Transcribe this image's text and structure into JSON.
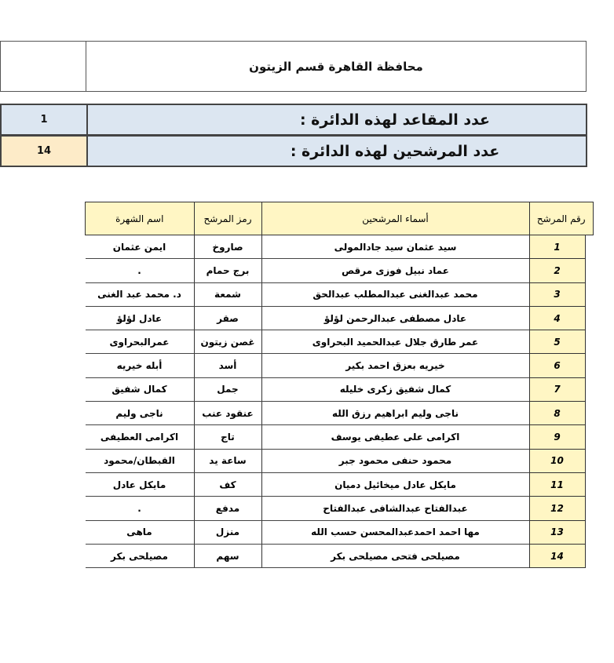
{
  "title": "محافظة القاهرة قسم الزيتون",
  "seats": {
    "label": "عدد المقاعد لهذه الدائرة :",
    "value": "1"
  },
  "candidates_count": {
    "label": "عدد المرشحين لهذه الدائرة :",
    "value": "14"
  },
  "table": {
    "headers": {
      "number": "رقم المرشح",
      "name": "أسماء المرشحين",
      "symbol": "رمز المرشح",
      "fame": "اسم الشهرة"
    },
    "rows": [
      {
        "number": "1",
        "name": "سيد عثمان سيد جادالمولى",
        "symbol": "صاروخ",
        "fame": "ايمن عثمان"
      },
      {
        "number": "2",
        "name": "عماد نبيل فوزى مرقص",
        "symbol": "برج حمام",
        "fame": "."
      },
      {
        "number": "3",
        "name": "محمد عبدالغنى عبدالمطلب عبدالحق",
        "symbol": "شمعة",
        "fame": "د. محمد عبد الغنى"
      },
      {
        "number": "4",
        "name": "عادل مصطفى عبدالرحمن لؤلؤ",
        "symbol": "صقر",
        "fame": "عادل لؤلؤ"
      },
      {
        "number": "5",
        "name": "عمر طارق جلال عبدالحميد البحراوى",
        "symbol": "غصن زيتون",
        "fame": "عمرالبحراوى"
      },
      {
        "number": "6",
        "name": "خيريه بعزق احمد بكير",
        "symbol": "أسد",
        "fame": "أبله خيريه"
      },
      {
        "number": "7",
        "name": "كمال شفيق زكرى خليله",
        "symbol": "جمل",
        "fame": "كمال شفيق"
      },
      {
        "number": "8",
        "name": "ناجى وليم ابراهيم رزق الله",
        "symbol": "عنقود عنب",
        "fame": "ناجى وليم"
      },
      {
        "number": "9",
        "name": "اكرامى على عطيفى يوسف",
        "symbol": "تاج",
        "fame": "اكرامى العطيفى"
      },
      {
        "number": "10",
        "name": "محمود حنفى محمود جبر",
        "symbol": "ساعة يد",
        "fame": "القبطان/محمود"
      },
      {
        "number": "11",
        "name": "مايكل عادل ميخائيل دميان",
        "symbol": "كف",
        "fame": "مايكل عادل"
      },
      {
        "number": "12",
        "name": "عبدالفتاح عبدالشافى عبدالفتاح",
        "symbol": "مدفع",
        "fame": "."
      },
      {
        "number": "13",
        "name": "مها احمد احمدعبدالمحسن حسب الله",
        "symbol": "منزل",
        "fame": "ماهى"
      },
      {
        "number": "14",
        "name": "مصيلحى فتحى مصيلحى بكر",
        "symbol": "سهم",
        "fame": "مصيلحى بكر"
      }
    ]
  }
}
